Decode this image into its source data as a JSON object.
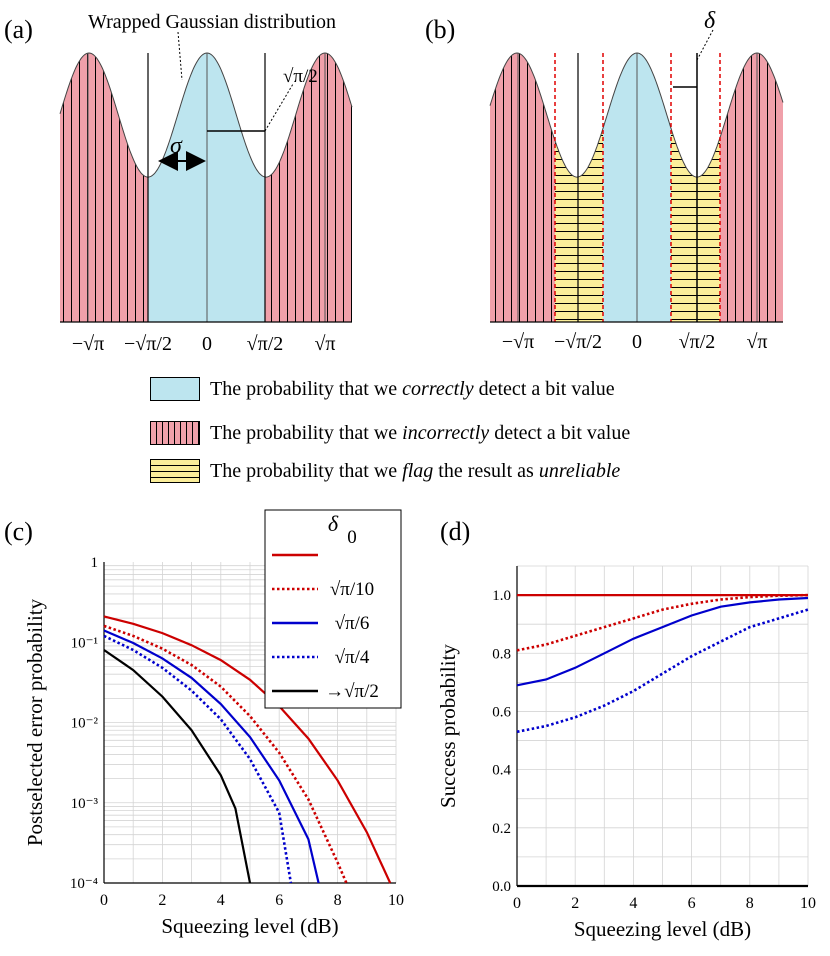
{
  "panels": {
    "a": {
      "label": "(a)",
      "title": "Wrapped Gaussian distribution",
      "sigma": "σ",
      "half": "√π/2",
      "ticks": [
        "−√π",
        "−√π/2",
        "0",
        "√π/2",
        "√π"
      ]
    },
    "b": {
      "label": "(b)",
      "delta": "δ",
      "ticks": [
        "−√π",
        "−√π/2",
        "0",
        "√π/2",
        "√π"
      ]
    },
    "c": {
      "label": "(c)"
    },
    "d": {
      "label": "(d)"
    }
  },
  "legend": {
    "correct": {
      "pre": "The probability that we ",
      "em": "correctly",
      "post": " detect a bit value"
    },
    "incorrect": {
      "pre": "The probability that we ",
      "em": "incorrectly",
      "post": " detect a bit value"
    },
    "flag": {
      "pre": "The probability that we ",
      "em": "flag",
      "post": " the result as ",
      "em2": "unreliable"
    }
  },
  "colors": {
    "correct": "#bde5ef",
    "incorrect": "#f0a0aa",
    "flag": "#fbee9a",
    "red": "#cc0000",
    "blue": "#0000cc",
    "black": "#000000"
  },
  "delta_legend": {
    "title": "δ",
    "entries": [
      "0",
      "√π/10",
      "√π/6",
      "√π/4",
      "→√π/2"
    ]
  },
  "chart_data": [
    {
      "type": "line",
      "panel": "c",
      "xlabel": "Squeezing level (dB)",
      "ylabel": "Postselected error probability",
      "xlim": [
        0,
        10
      ],
      "ylim": [
        0.0001,
        1
      ],
      "yscale": "log",
      "xticks": [
        "0",
        "2",
        "4",
        "6",
        "8",
        "10"
      ],
      "yticks": [
        "1",
        "10⁻¹",
        "10⁻²",
        "10⁻³",
        "10⁻⁴"
      ],
      "grid": true,
      "series": [
        {
          "name": "0",
          "color": "#cc0000",
          "dash": "solid",
          "x": [
            0,
            1,
            2,
            3,
            4,
            5,
            6,
            7,
            8,
            9,
            9.8
          ],
          "y": [
            0.21,
            0.17,
            0.13,
            0.092,
            0.06,
            0.034,
            0.016,
            0.0063,
            0.0019,
            0.00043,
            0.0001
          ]
        },
        {
          "name": "√π/10",
          "color": "#cc0000",
          "dash": "dotted",
          "x": [
            0,
            1,
            2,
            3,
            4,
            5,
            6,
            7,
            8,
            8.3
          ],
          "y": [
            0.16,
            0.12,
            0.083,
            0.052,
            0.028,
            0.012,
            0.0042,
            0.0011,
            0.00018,
            0.0001
          ]
        },
        {
          "name": "√π/6",
          "color": "#0000cc",
          "dash": "solid",
          "x": [
            0,
            1,
            2,
            3,
            4,
            5,
            6,
            7,
            7.35
          ],
          "y": [
            0.14,
            0.098,
            0.063,
            0.036,
            0.017,
            0.0066,
            0.0019,
            0.00035,
            0.0001
          ]
        },
        {
          "name": "√π/4",
          "color": "#0000cc",
          "dash": "dotted",
          "x": [
            0,
            1,
            2,
            3,
            4,
            5,
            6,
            6.4
          ],
          "y": [
            0.12,
            0.08,
            0.048,
            0.025,
            0.011,
            0.0035,
            0.00075,
            0.0001
          ]
        },
        {
          "name": "→√π/2",
          "color": "#000000",
          "dash": "solid",
          "x": [
            0,
            1,
            2,
            3,
            4,
            4.5,
            5.0
          ],
          "y": [
            0.08,
            0.045,
            0.021,
            0.008,
            0.0022,
            0.00085,
            0.0001
          ]
        }
      ]
    },
    {
      "type": "line",
      "panel": "d",
      "xlabel": "Squeezing level (dB)",
      "ylabel": "Success probability",
      "xlim": [
        0,
        10
      ],
      "ylim": [
        0,
        1.1
      ],
      "xticks": [
        "0",
        "2",
        "4",
        "6",
        "8",
        "10"
      ],
      "yticks": [
        "0.0",
        "0.2",
        "0.4",
        "0.6",
        "0.8",
        "1.0"
      ],
      "grid": true,
      "series": [
        {
          "name": "0",
          "color": "#cc0000",
          "dash": "solid",
          "x": [
            0,
            10
          ],
          "y": [
            1.0,
            1.0
          ]
        },
        {
          "name": "√π/10",
          "color": "#cc0000",
          "dash": "dotted",
          "x": [
            0,
            1,
            2,
            3,
            4,
            5,
            6,
            7,
            8,
            9,
            10
          ],
          "y": [
            0.81,
            0.83,
            0.86,
            0.89,
            0.92,
            0.95,
            0.97,
            0.985,
            0.993,
            0.998,
            1.0
          ]
        },
        {
          "name": "√π/6",
          "color": "#0000cc",
          "dash": "solid",
          "x": [
            0,
            1,
            2,
            3,
            4,
            5,
            6,
            7,
            8,
            9,
            10
          ],
          "y": [
            0.69,
            0.71,
            0.75,
            0.8,
            0.85,
            0.89,
            0.93,
            0.96,
            0.975,
            0.985,
            0.99
          ]
        },
        {
          "name": "√π/4",
          "color": "#0000cc",
          "dash": "dotted",
          "x": [
            0,
            1,
            2,
            3,
            4,
            5,
            6,
            7,
            8,
            9,
            10
          ],
          "y": [
            0.53,
            0.55,
            0.58,
            0.62,
            0.67,
            0.73,
            0.79,
            0.84,
            0.89,
            0.92,
            0.95
          ]
        },
        {
          "name": "→√π/2",
          "color": "#000000",
          "dash": "solid",
          "x": [
            0,
            10
          ],
          "y": [
            0.0,
            0.0
          ]
        }
      ]
    }
  ]
}
